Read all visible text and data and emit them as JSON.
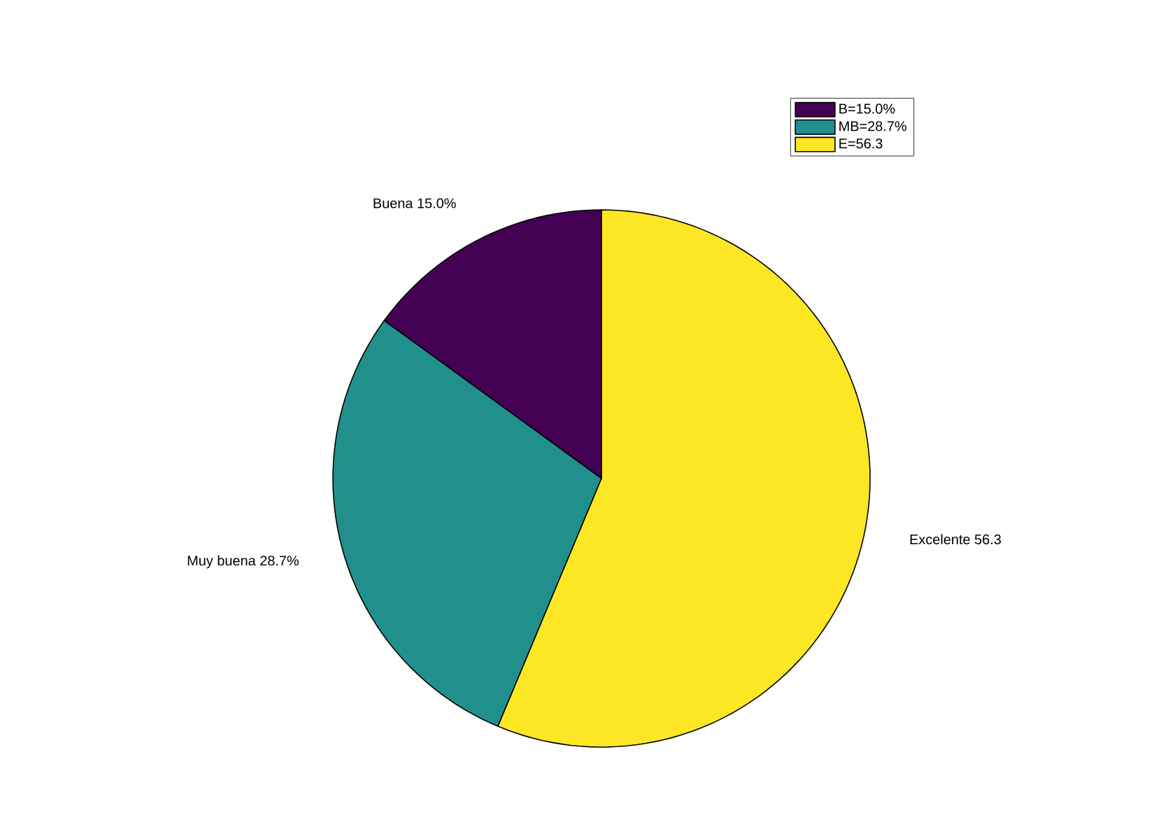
{
  "chart_data": {
    "type": "pie",
    "categories": [
      "B=15.0%",
      "MB=28.7%",
      "E=56.3"
    ],
    "values": [
      15.0,
      28.7,
      56.3
    ],
    "colors": [
      "#440154",
      "#21908d",
      "#fde725"
    ],
    "legend": "top right",
    "annotations": [
      "Buena 15.0%",
      "Muy buena 28.7%",
      "Excelente 56.3"
    ]
  }
}
